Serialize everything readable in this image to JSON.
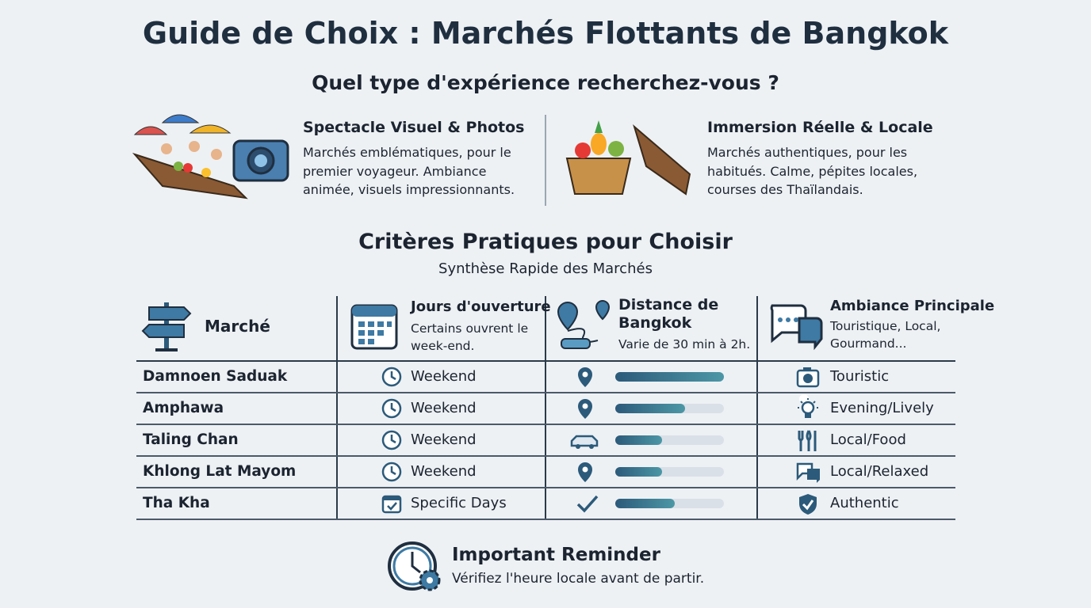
{
  "title": "Guide de Choix : Marchés Flottants de Bangkok",
  "question": "Quel type d'expérience recherchez-vous ?",
  "experiences": [
    {
      "title": "Spectacle Visuel & Photos",
      "text": "Marchés emblématiques, pour le premier voyageur. Ambiance animée, visuels impressionnants."
    },
    {
      "title": "Immersion Réelle & Locale",
      "text": "Marchés authentiques, pour les habitués. Calme, pépites locales, courses des Thaïlandais."
    }
  ],
  "criteria": {
    "title": "Critères Pratiques pour Choisir",
    "subtitle": "Synthèse Rapide des Marchés"
  },
  "table": {
    "headers": [
      {
        "title": "Marché"
      },
      {
        "title": "Jours d'ouverture",
        "note": "Certains ouvrent le week-end."
      },
      {
        "title": "Distance de Bangkok",
        "note": "Varie de 30 min à 2h."
      },
      {
        "title": "Ambiance Principale",
        "note": "Touristique, Local, Gourmand..."
      }
    ],
    "rows": [
      {
        "market": "Damnoen Saduak",
        "days": "Weekend",
        "distance_bar": 1.0,
        "ambiance": "Touristic"
      },
      {
        "market": "Amphawa",
        "days": "Weekend",
        "distance_bar": 0.64,
        "ambiance": "Evening/Lively"
      },
      {
        "market": "Taling Chan",
        "days": "Weekend",
        "distance_bar": 0.43,
        "ambiance": "Local/Food"
      },
      {
        "market": "Khlong Lat Mayom",
        "days": "Weekend",
        "distance_bar": 0.43,
        "ambiance": "Local/Relaxed"
      },
      {
        "market": "Tha Kha",
        "days": "Specific Days",
        "distance_bar": 0.55,
        "ambiance": "Authentic"
      }
    ]
  },
  "reminder": {
    "title": "Important Reminder",
    "text": "Vérifiez l'heure locale avant de partir."
  }
}
